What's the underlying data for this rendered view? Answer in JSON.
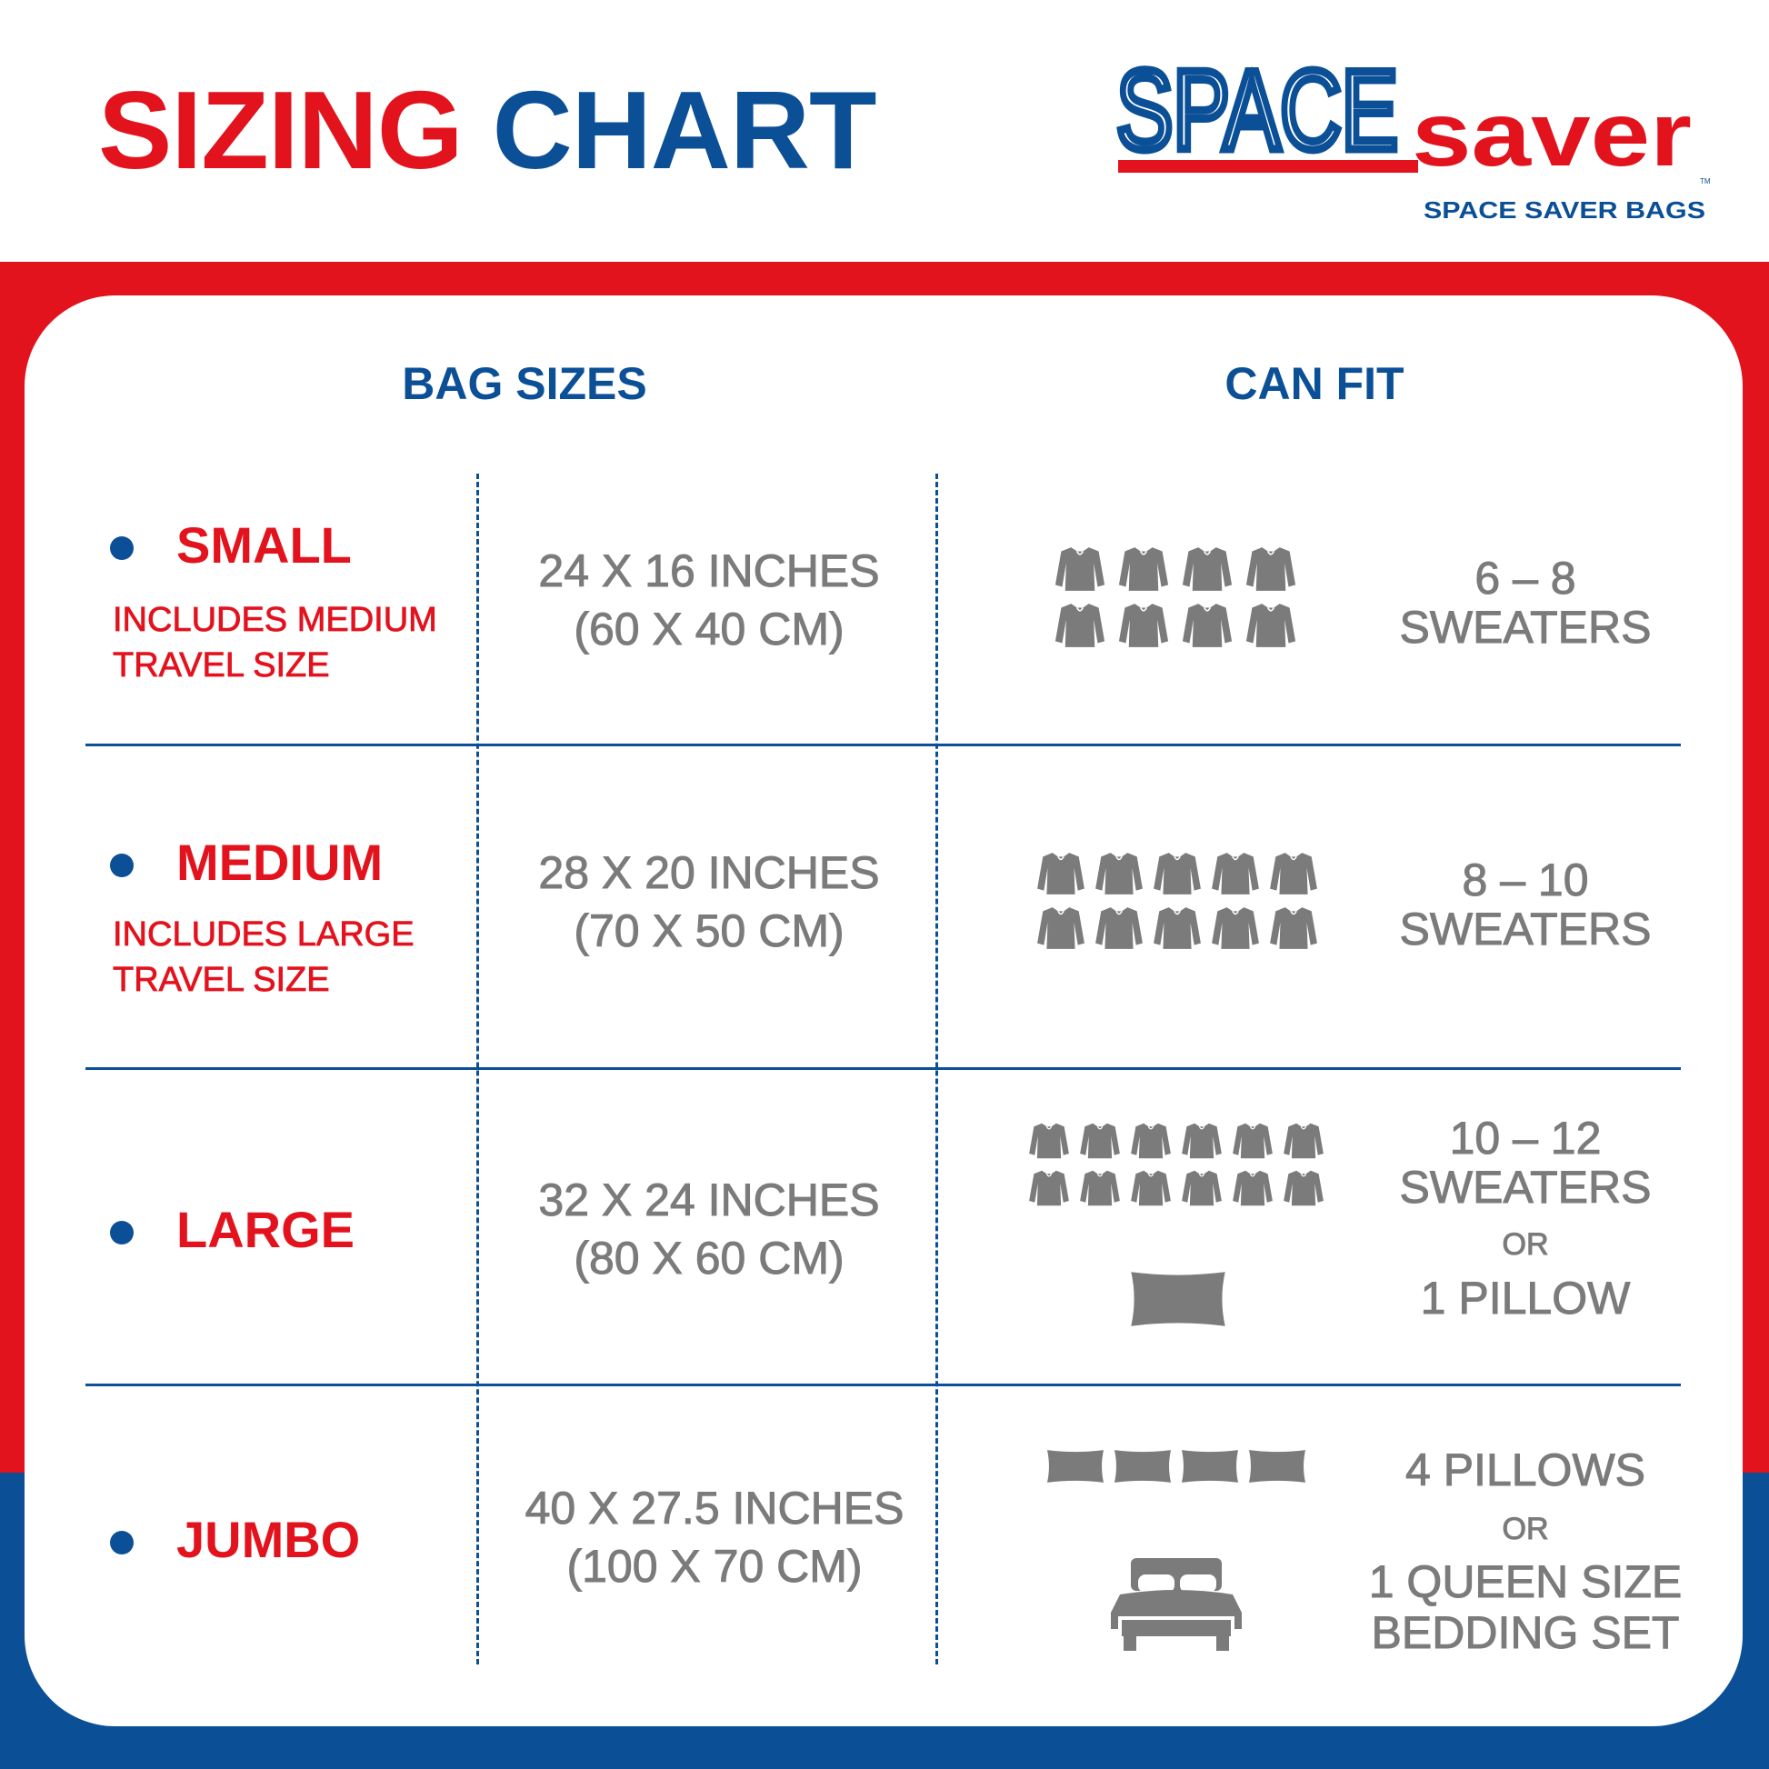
{
  "header": {
    "title_part1": "SIZING",
    "title_part2": "CHART",
    "logo": {
      "word1": "SPACE",
      "word2": "saver",
      "tagline": "SPACE SAVER BAGS",
      "tm": "TM"
    }
  },
  "colors": {
    "red": "#e3131e",
    "blue": "#0b4f97",
    "gray": "#7b7b7b"
  },
  "columns": {
    "bag_sizes": "BAG SIZES",
    "can_fit": "CAN FIT"
  },
  "rows": [
    {
      "name": "SMALL",
      "note": [
        "INCLUDES MEDIUM",
        "TRAVEL SIZE"
      ],
      "size_in": "24 X 16 INCHES",
      "size_cm": "(60 X 40 CM)",
      "fit": [
        "6 – 8",
        "SWEATERS"
      ],
      "icons": {
        "sweater": 8
      }
    },
    {
      "name": "MEDIUM",
      "note": [
        "INCLUDES LARGE",
        "TRAVEL SIZE"
      ],
      "size_in": "28 X 20 INCHES",
      "size_cm": "(70 X 50 CM)",
      "fit": [
        "8 – 10",
        "SWEATERS"
      ],
      "icons": {
        "sweater": 10
      }
    },
    {
      "name": "LARGE",
      "size_in": "32 X 24 INCHES",
      "size_cm": "(80 X 60 CM)",
      "fit": [
        "10 – 12",
        "SWEATERS",
        "OR",
        "1 PILLOW"
      ],
      "icons": {
        "sweater": 12,
        "pillow": 1
      }
    },
    {
      "name": "JUMBO",
      "size_in": "40 X 27.5 INCHES",
      "size_cm": "(100 X 70 CM)",
      "fit": [
        "4 PILLOWS",
        "OR",
        "1 QUEEN SIZE",
        "BEDDING SET"
      ],
      "icons": {
        "pillow": 4,
        "bed": 1
      }
    }
  ]
}
